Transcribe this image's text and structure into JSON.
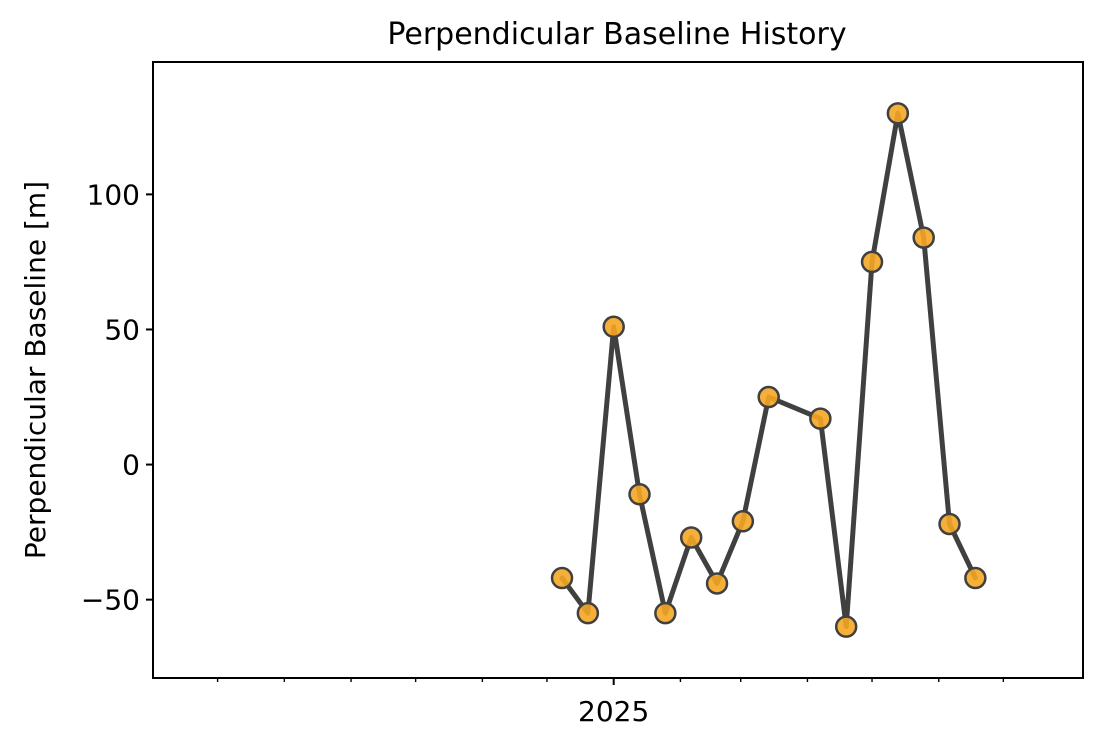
{
  "chart_data": {
    "type": "line",
    "title": "Perpendicular Baseline History",
    "xlabel": "",
    "ylabel": "Perpendicular Baseline [m]",
    "x_ticks": [
      {
        "date": "2025-01-01",
        "label": "2025"
      }
    ],
    "x_minor_ticks": [
      "2024-07-01",
      "2024-08-01",
      "2024-09-01",
      "2024-10-01",
      "2024-11-01",
      "2024-12-01",
      "2025-02-01",
      "2025-03-01",
      "2025-04-01",
      "2025-05-01",
      "2025-06-01",
      "2025-07-01"
    ],
    "xlim": [
      "2024-06-01",
      "2025-08-07"
    ],
    "ylim": [
      -79,
      149
    ],
    "y_ticks": [
      {
        "value": -50,
        "label": "−50"
      },
      {
        "value": 0,
        "label": "0"
      },
      {
        "value": 50,
        "label": "50"
      },
      {
        "value": 100,
        "label": "100"
      }
    ],
    "grid": false,
    "series": [
      {
        "color": "#404040",
        "marker_fill": "#F5A623",
        "marker_edge": "#404040",
        "points": [
          {
            "x": "2024-12-08",
            "y": -42
          },
          {
            "x": "2024-12-20",
            "y": -55
          },
          {
            "x": "2025-01-01",
            "y": 51
          },
          {
            "x": "2025-01-13",
            "y": -11
          },
          {
            "x": "2025-01-25",
            "y": -55
          },
          {
            "x": "2025-02-06",
            "y": -27
          },
          {
            "x": "2025-02-18",
            "y": -44
          },
          {
            "x": "2025-03-02",
            "y": -21
          },
          {
            "x": "2025-03-14",
            "y": 25
          },
          {
            "x": "2025-04-07",
            "y": 17
          },
          {
            "x": "2025-04-19",
            "y": -60
          },
          {
            "x": "2025-05-01",
            "y": 75
          },
          {
            "x": "2025-05-13",
            "y": 130
          },
          {
            "x": "2025-05-25",
            "y": 84
          },
          {
            "x": "2025-06-06",
            "y": -22
          },
          {
            "x": "2025-06-18",
            "y": -42
          }
        ]
      }
    ]
  }
}
